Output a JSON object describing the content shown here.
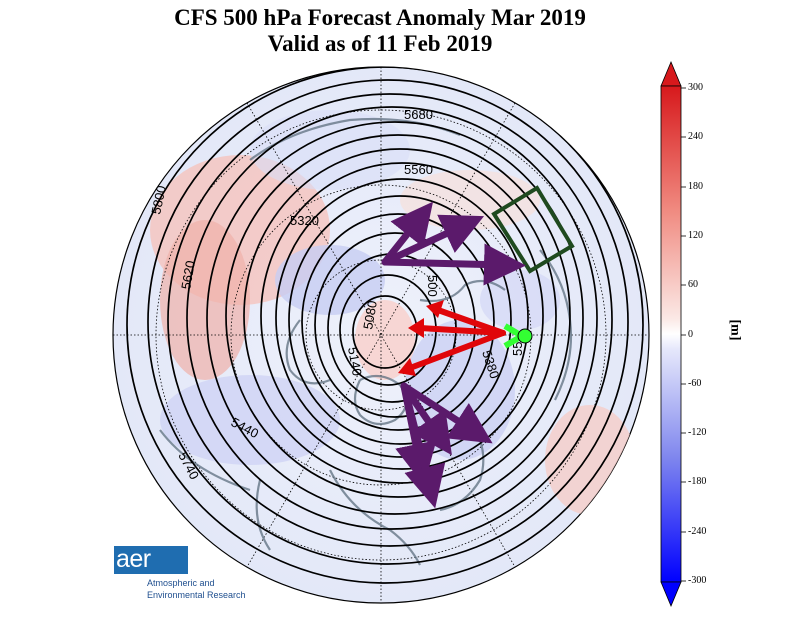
{
  "title": {
    "line1": "CFS 500 hPa Forecast Anomaly Mar 2019",
    "line2": "Valid as of 11 Feb 2019"
  },
  "colorbar": {
    "unit": "[m]",
    "ticks": [
      "300",
      "240",
      "180",
      "120",
      "60",
      "0",
      "-60",
      "-120",
      "-180",
      "-240",
      "-300"
    ],
    "max_color": "#d7191c",
    "min_color": "#0000ff"
  },
  "contour_labels": [
    "5680",
    "5560",
    "5320",
    "5800",
    "5620",
    "5080",
    "5140",
    "5440",
    "5740",
    "5380",
    "500",
    "55"
  ],
  "annotations": {
    "purple_arrows": 7,
    "red_arrows": 3,
    "arrow_colors": {
      "purple": "#5b1a6b",
      "red": "#e0060a",
      "box": "#1f4a1f",
      "marker": "#33ff33"
    }
  },
  "logo": {
    "mark": "aer",
    "name_line1": "Atmospheric and",
    "name_line2": "Environmental Research"
  }
}
